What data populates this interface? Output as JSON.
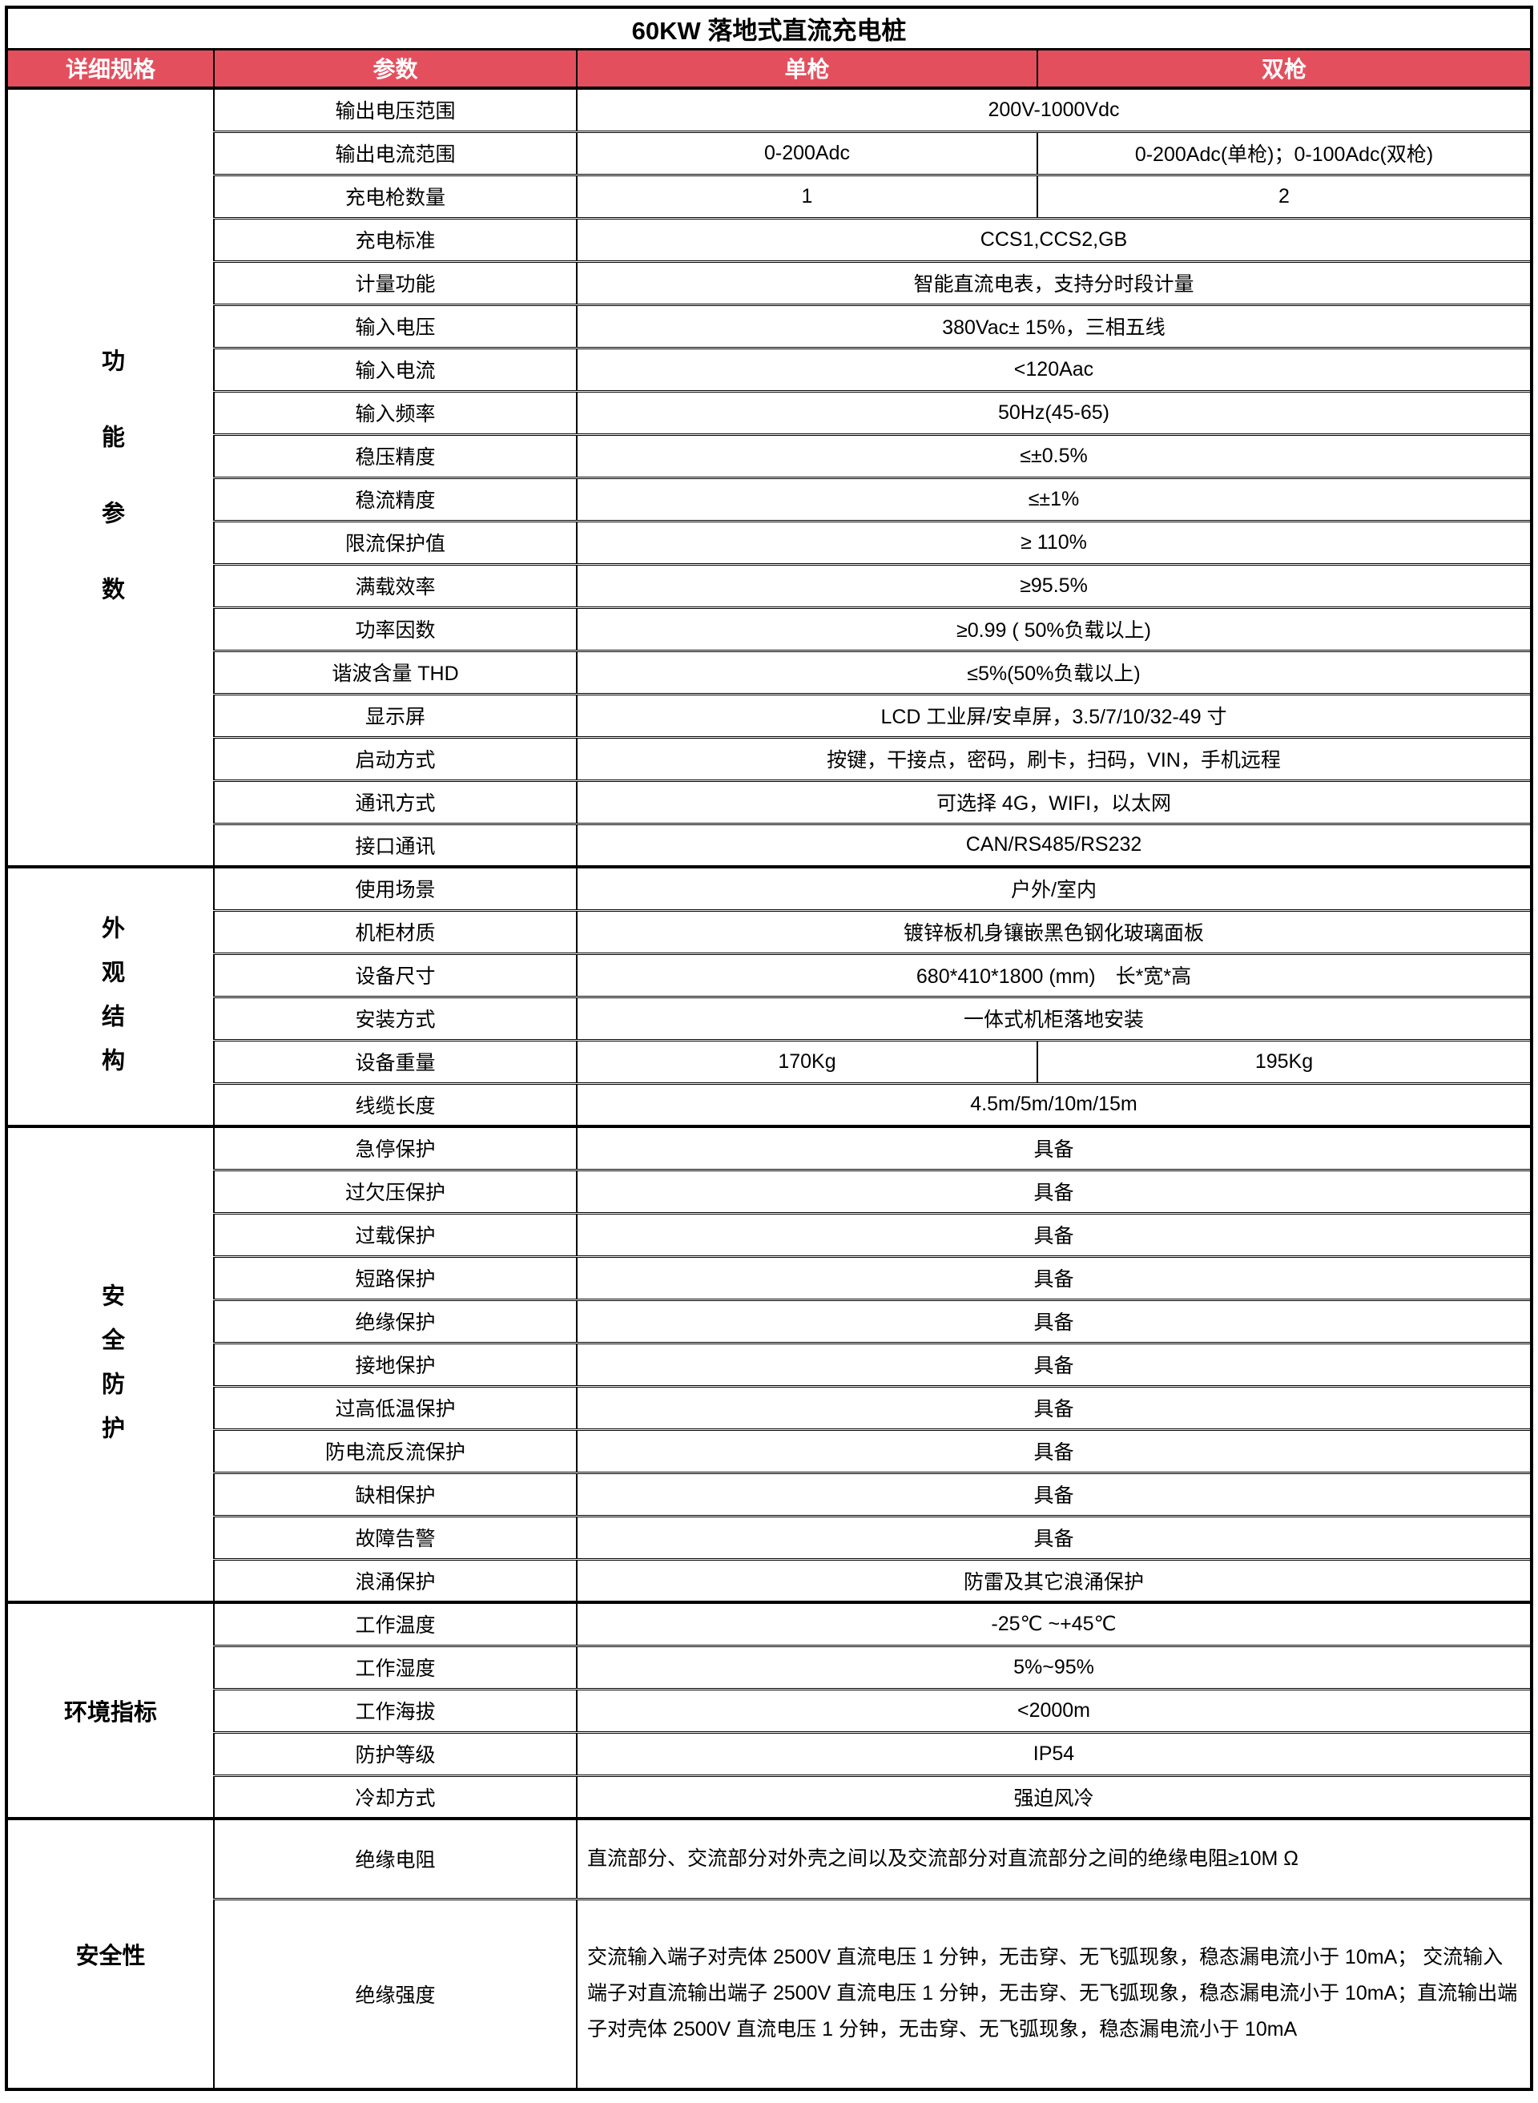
{
  "title": "60KW 落地式直流充电桩",
  "columns": {
    "spec": "详细规格",
    "param": "参数",
    "single": "单枪",
    "dual": "双枪"
  },
  "colors": {
    "header_bg": "#e44f5e",
    "header_text": "#ffffff",
    "border": "#000000",
    "body_bg": "#ffffff"
  },
  "groups": [
    {
      "label": "功能参数"
    },
    {
      "label": "外观结构"
    },
    {
      "label": "安全防护"
    },
    {
      "label": "环境指标"
    },
    {
      "label": "安全性"
    }
  ],
  "rows": [
    {
      "param": "输出电压范围",
      "value": "200V-1000Vdc"
    },
    {
      "param": "输出电流范围",
      "single": "0-200Adc",
      "dual": "0-200Adc(单枪)；0-100Adc(双枪)"
    },
    {
      "param": "充电枪数量",
      "single": "1",
      "dual": "2"
    },
    {
      "param": "充电标准",
      "value": "CCS1,CCS2,GB"
    },
    {
      "param": "计量功能",
      "value": "智能直流电表，支持分时段计量"
    },
    {
      "param": "输入电压",
      "value": "380Vac± 15%，三相五线"
    },
    {
      "param": "输入电流",
      "value": "<120Aac"
    },
    {
      "param": "输入频率",
      "value": "50Hz(45-65)"
    },
    {
      "param": "稳压精度",
      "value": "≤±0.5%"
    },
    {
      "param": "稳流精度",
      "value": "≤±1%"
    },
    {
      "param": "限流保护值",
      "value": "≥ 110%"
    },
    {
      "param": "满载效率",
      "value": "≥95.5%"
    },
    {
      "param": "功率因数",
      "value": "≥0.99 ( 50%负载以上)"
    },
    {
      "param": "谐波含量 THD",
      "value": "≤5%(50%负载以上)"
    },
    {
      "param": "显示屏",
      "value": "LCD 工业屏/安卓屏，3.5/7/10/32-49 寸"
    },
    {
      "param": "启动方式",
      "value": "按键，干接点，密码，刷卡，扫码，VIN，手机远程"
    },
    {
      "param": "通讯方式",
      "value": "可选择 4G，WIFI，以太网"
    },
    {
      "param": "接口通讯",
      "value": "CAN/RS485/RS232"
    },
    {
      "param": "使用场景",
      "value": "户外/室内"
    },
    {
      "param": "机柜材质",
      "value": "镀锌板机身镶嵌黑色钢化玻璃面板"
    },
    {
      "param": "设备尺寸",
      "value": "680*410*1800 (mm)　长*宽*高"
    },
    {
      "param": "安装方式",
      "value": "一体式机柜落地安装"
    },
    {
      "param": "设备重量",
      "single": "170Kg",
      "dual": "195Kg"
    },
    {
      "param": "线缆长度",
      "value": "4.5m/5m/10m/15m"
    },
    {
      "param": "急停保护",
      "value": "具备"
    },
    {
      "param": "过欠压保护",
      "value": "具备"
    },
    {
      "param": "过载保护",
      "value": "具备"
    },
    {
      "param": "短路保护",
      "value": "具备"
    },
    {
      "param": "绝缘保护",
      "value": "具备"
    },
    {
      "param": "接地保护",
      "value": "具备"
    },
    {
      "param": "过高低温保护",
      "value": "具备"
    },
    {
      "param": "防电流反流保护",
      "value": "具备"
    },
    {
      "param": "缺相保护",
      "value": "具备"
    },
    {
      "param": "故障告警",
      "value": "具备"
    },
    {
      "param": "浪涌保护",
      "value": "防雷及其它浪涌保护"
    },
    {
      "param": "工作温度",
      "value": "-25℃ ~+45℃"
    },
    {
      "param": "工作湿度",
      "value": "5%~95%"
    },
    {
      "param": "工作海拔",
      "value": "<2000m"
    },
    {
      "param": "防护等级",
      "value": "IP54"
    },
    {
      "param": "冷却方式",
      "value": "强迫风冷"
    },
    {
      "param": "绝缘电阻",
      "value": "直流部分、交流部分对外壳之间以及交流部分对直流部分之间的绝缘电阻≥10M Ω"
    },
    {
      "param": "绝缘强度",
      "value": "交流输入端子对壳体 2500V 直流电压 1 分钟，无击穿、无飞弧现象，稳态漏电流小于 10mA； 交流输入端子对直流输出端子 2500V 直流电压 1 分钟，无击穿、无飞弧现象，稳态漏电流小于 10mA；直流输出端子对壳体 2500V 直流电压 1 分钟，无击穿、无飞弧现象，稳态漏电流小于 10mA"
    }
  ]
}
